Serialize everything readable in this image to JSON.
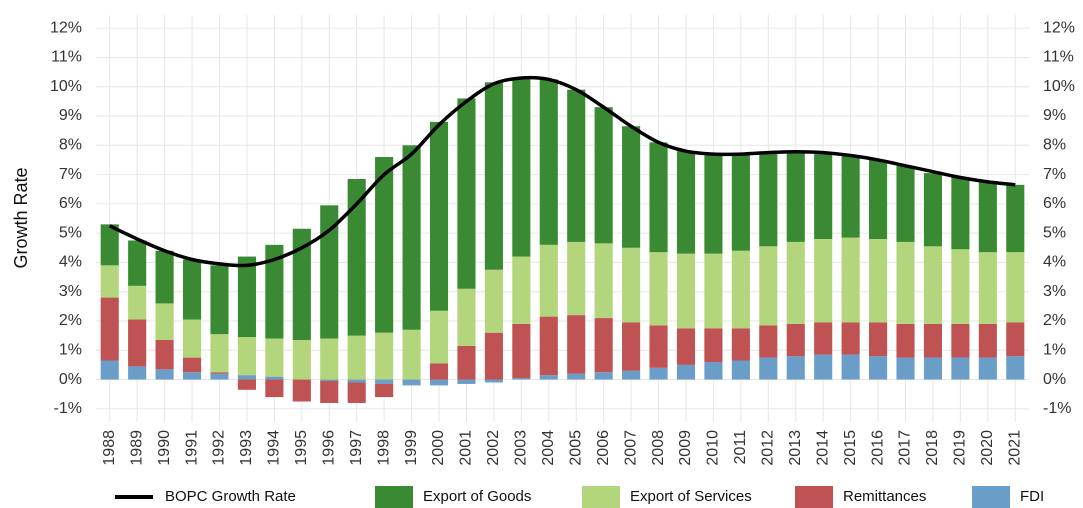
{
  "chart_data": {
    "type": "stacked-bar-line",
    "y_label": "Growth Rate",
    "categories": [
      "1988",
      "1989",
      "1990",
      "1991",
      "1992",
      "1993",
      "1994",
      "1995",
      "1996",
      "1997",
      "1998",
      "1999",
      "2000",
      "2001",
      "2002",
      "2003",
      "2004",
      "2005",
      "2006",
      "2007",
      "2008",
      "2009",
      "2010",
      "2011",
      "2012",
      "2013",
      "2014",
      "2015",
      "2016",
      "2017",
      "2018",
      "2019",
      "2020",
      "2021"
    ],
    "series": [
      {
        "name": "BOPC Growth Rate",
        "type": "line",
        "color": "#000000",
        "values": [
          5.25,
          4.8,
          4.4,
          4.1,
          3.95,
          3.9,
          4.1,
          4.5,
          5.1,
          6.0,
          7.0,
          7.7,
          8.7,
          9.5,
          10.1,
          10.3,
          10.25,
          9.9,
          9.3,
          8.65,
          8.1,
          7.8,
          7.7,
          7.7,
          7.75,
          7.78,
          7.75,
          7.65,
          7.5,
          7.3,
          7.1,
          6.9,
          6.75,
          6.65
        ]
      },
      {
        "name": "Export of Goods",
        "type": "bar",
        "color": "#3a8a34",
        "values": [
          1.4,
          1.55,
          1.8,
          2.05,
          2.35,
          2.75,
          3.2,
          3.8,
          4.55,
          5.35,
          6.0,
          6.3,
          6.45,
          6.5,
          6.4,
          6.1,
          5.65,
          5.2,
          4.65,
          4.15,
          3.75,
          3.5,
          3.4,
          3.3,
          3.2,
          3.05,
          2.9,
          2.8,
          2.7,
          2.6,
          2.5,
          2.45,
          2.4,
          2.3
        ]
      },
      {
        "name": "Export of Services",
        "type": "bar",
        "color": "#b3d67c",
        "values": [
          1.1,
          1.15,
          1.25,
          1.3,
          1.3,
          1.3,
          1.3,
          1.35,
          1.4,
          1.5,
          1.6,
          1.7,
          1.8,
          1.95,
          2.15,
          2.3,
          2.45,
          2.5,
          2.55,
          2.55,
          2.5,
          2.55,
          2.55,
          2.65,
          2.7,
          2.8,
          2.85,
          2.9,
          2.85,
          2.8,
          2.65,
          2.55,
          2.45,
          2.4
        ]
      },
      {
        "name": "Remittances",
        "type": "bar",
        "color": "#bf5252",
        "values": [
          2.15,
          1.6,
          1.0,
          0.5,
          0.05,
          -0.35,
          -0.6,
          -0.75,
          -0.75,
          -0.7,
          -0.45,
          0,
          0.55,
          1.15,
          1.6,
          1.85,
          2.0,
          2.0,
          1.85,
          1.65,
          1.45,
          1.25,
          1.15,
          1.1,
          1.1,
          1.1,
          1.1,
          1.1,
          1.15,
          1.15,
          1.15,
          1.15,
          1.15,
          1.15
        ]
      },
      {
        "name": "FDI",
        "type": "bar",
        "color": "#6b9dc9",
        "values": [
          0.65,
          0.45,
          0.35,
          0.25,
          0.2,
          0.15,
          0.1,
          0,
          -0.05,
          -0.1,
          -0.15,
          -0.2,
          -0.2,
          -0.15,
          -0.1,
          0.05,
          0.15,
          0.2,
          0.25,
          0.3,
          0.4,
          0.5,
          0.6,
          0.65,
          0.75,
          0.8,
          0.85,
          0.85,
          0.8,
          0.75,
          0.75,
          0.75,
          0.75,
          0.8
        ]
      }
    ],
    "ylim": [
      -1.45,
      12.45
    ],
    "yticks": [
      {
        "value": -1,
        "label": "-1%"
      },
      {
        "value": 0,
        "label": "0%"
      },
      {
        "value": 1,
        "label": "1%"
      },
      {
        "value": 2,
        "label": "2%"
      },
      {
        "value": 3,
        "label": "3%"
      },
      {
        "value": 4,
        "label": "4%"
      },
      {
        "value": 5,
        "label": "5%"
      },
      {
        "value": 6,
        "label": "6%"
      },
      {
        "value": 7,
        "label": "7%"
      },
      {
        "value": 8,
        "label": "8%"
      },
      {
        "value": 9,
        "label": "9%"
      },
      {
        "value": 10,
        "label": "10%"
      },
      {
        "value": 11,
        "label": "11%"
      },
      {
        "value": 12,
        "label": "12%"
      }
    ],
    "grid": true,
    "legend": "bottom"
  }
}
